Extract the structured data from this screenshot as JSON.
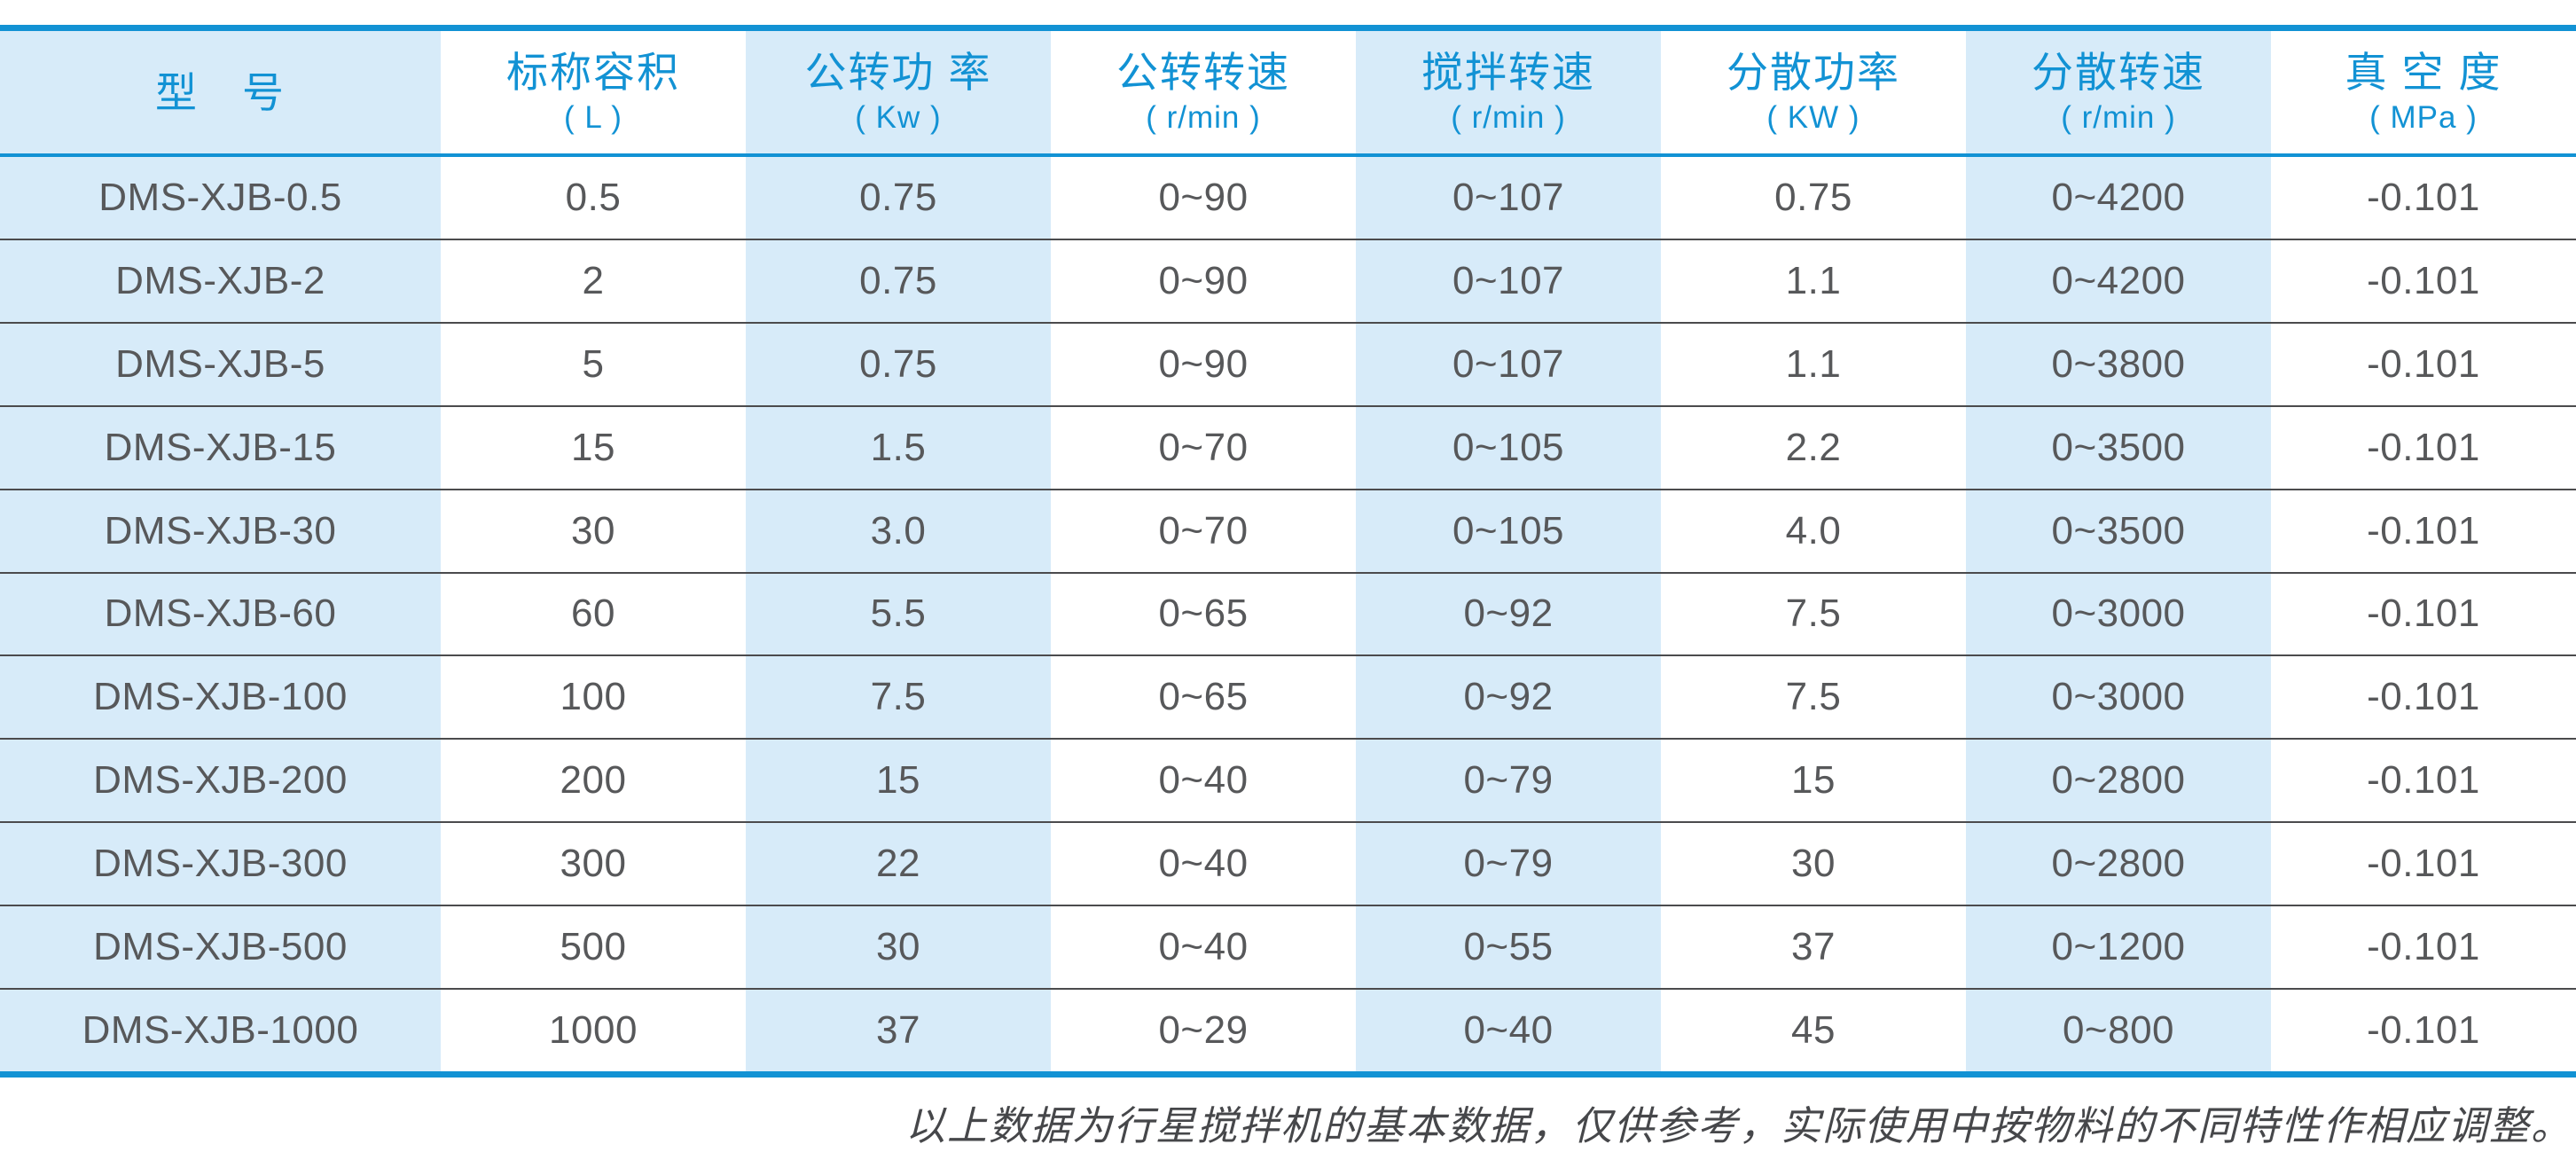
{
  "colors": {
    "accent": "#1292d4",
    "tint": "#d7ebf9",
    "ink": "#57585a",
    "sep": "#4b4b4d",
    "note": "#46474a",
    "bg": "#ffffff"
  },
  "table": {
    "columns": [
      {
        "title": "型　号",
        "unit": ""
      },
      {
        "title": "标称容积",
        "unit": "( L )"
      },
      {
        "title": "公转功 率",
        "unit": "( Kw )"
      },
      {
        "title": "公转转速",
        "unit": "( r/min )"
      },
      {
        "title": "搅拌转速",
        "unit": "( r/min )"
      },
      {
        "title": "分散功率",
        "unit": "( KW )"
      },
      {
        "title": "分散转速",
        "unit": "( r/min )"
      },
      {
        "title": "真 空 度",
        "unit": "( MPa )"
      }
    ],
    "rows": [
      [
        "DMS-XJB-0.5",
        "0.5",
        "0.75",
        "0~90",
        "0~107",
        "0.75",
        "0~4200",
        "-0.101"
      ],
      [
        "DMS-XJB-2",
        "2",
        "0.75",
        "0~90",
        "0~107",
        "1.1",
        "0~4200",
        "-0.101"
      ],
      [
        "DMS-XJB-5",
        "5",
        "0.75",
        "0~90",
        "0~107",
        "1.1",
        "0~3800",
        "-0.101"
      ],
      [
        "DMS-XJB-15",
        "15",
        "1.5",
        "0~70",
        "0~105",
        "2.2",
        "0~3500",
        "-0.101"
      ],
      [
        "DMS-XJB-30",
        "30",
        "3.0",
        "0~70",
        "0~105",
        "4.0",
        "0~3500",
        "-0.101"
      ],
      [
        "DMS-XJB-60",
        "60",
        "5.5",
        "0~65",
        "0~92",
        "7.5",
        "0~3000",
        "-0.101"
      ],
      [
        "DMS-XJB-100",
        "100",
        "7.5",
        "0~65",
        "0~92",
        "7.5",
        "0~3000",
        "-0.101"
      ],
      [
        "DMS-XJB-200",
        "200",
        "15",
        "0~40",
        "0~79",
        "15",
        "0~2800",
        "-0.101"
      ],
      [
        "DMS-XJB-300",
        "300",
        "22",
        "0~40",
        "0~79",
        "30",
        "0~2800",
        "-0.101"
      ],
      [
        "DMS-XJB-500",
        "500",
        "30",
        "0~40",
        "0~55",
        "37",
        "0~1200",
        "-0.101"
      ],
      [
        "DMS-XJB-1000",
        "1000",
        "37",
        "0~29",
        "0~40",
        "45",
        "0~800",
        "-0.101"
      ]
    ]
  },
  "footnote": "以上数据为行星搅拌机的基本数据，仅供参考，实际使用中按物料的不同特性作相应调整。"
}
